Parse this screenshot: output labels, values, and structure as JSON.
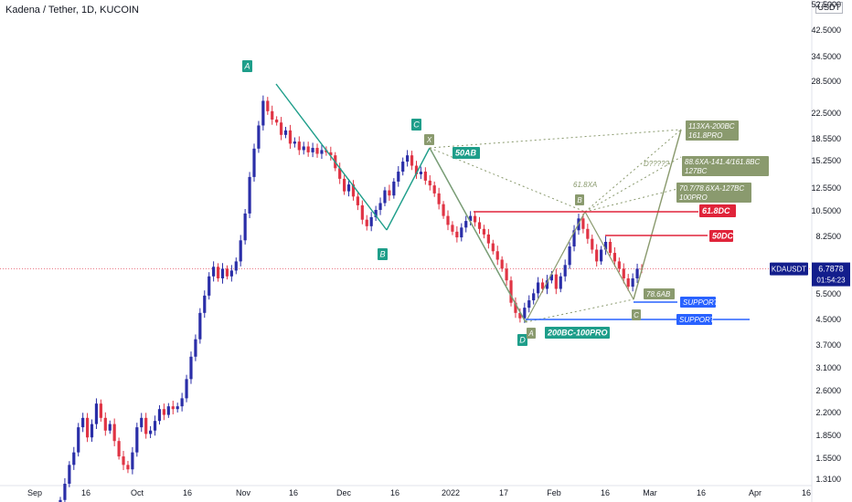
{
  "header": {
    "title": "Kadena / Tether, 1D, KUCOIN",
    "currency": "USDT"
  },
  "colors": {
    "up": "#2a2ea8",
    "down": "#e03444",
    "pattern": "#1e9e8a",
    "olive": "#8a9a6e",
    "red": "#e0243a",
    "blue": "#2962ff",
    "price_tag": "#131e8c"
  },
  "price_tag": {
    "symbol": "KDAUSDT",
    "price": "6.7878",
    "timer": "01:54:23"
  },
  "chart_data": {
    "type": "candlestick",
    "y_scale": "log",
    "ylim": [
      1.25,
      52.5
    ],
    "y_ticks": [
      "52.5000",
      "42.5000",
      "34.5000",
      "28.5000",
      "22.5000",
      "18.5500",
      "15.2500",
      "12.5500",
      "10.5000",
      "8.2500",
      "6.8000",
      "5.5000",
      "4.5000",
      "3.7000",
      "3.1000",
      "2.6000",
      "2.2000",
      "1.8500",
      "1.5500",
      "1.3100"
    ],
    "x_labels": [
      "Sep",
      "16",
      "Oct",
      "16",
      "Nov",
      "16",
      "Dec",
      "16",
      "2022",
      "17",
      "Feb",
      "16",
      "Mar",
      "16",
      "Apr",
      "16"
    ],
    "closes": [
      1.1,
      1.25,
      1.45,
      1.6,
      1.95,
      2.1,
      1.8,
      2.0,
      2.35,
      2.1,
      1.9,
      2.0,
      1.75,
      1.55,
      1.45,
      1.4,
      1.6,
      1.95,
      2.1,
      1.85,
      1.9,
      2.05,
      2.25,
      2.15,
      2.3,
      2.25,
      2.3,
      2.45,
      2.85,
      3.4,
      3.9,
      4.8,
      5.5,
      6.4,
      6.9,
      6.3,
      6.8,
      6.4,
      6.7,
      7.2,
      8.5,
      10.5,
      14.0,
      17.5,
      21.0,
      25.5,
      23.5,
      22.0,
      21.5,
      19.5,
      20.2,
      18.2,
      18.5,
      17.3,
      17.8,
      17.0,
      17.6,
      16.8,
      17.3,
      17.0,
      16.6,
      15.0,
      13.8,
      12.5,
      13.2,
      12.0,
      11.2,
      10.0,
      9.5,
      10.2,
      10.8,
      11.4,
      12.6,
      12.1,
      13.5,
      14.6,
      15.8,
      16.6,
      15.3,
      14.3,
      14.6,
      13.6,
      13.1,
      12.3,
      11.3,
      10.3,
      9.6,
      9.1,
      8.7,
      9.4,
      9.9,
      10.3,
      9.8,
      9.3,
      8.9,
      8.3,
      7.8,
      7.3,
      6.8,
      6.2,
      5.2,
      4.8,
      4.6,
      5.0,
      5.3,
      5.6,
      6.1,
      5.8,
      6.2,
      6.5,
      5.8,
      6.4,
      7.0,
      8.1,
      9.2,
      10.1,
      9.3,
      8.6,
      7.9,
      7.2,
      7.9,
      8.4,
      7.7,
      7.2,
      6.8,
      6.3,
      5.9,
      6.3,
      6.8,
      6.7878
    ],
    "annotations": [
      {
        "text": "A",
        "style": "teal-letter"
      },
      {
        "text": "B",
        "style": "teal-letter"
      },
      {
        "text": "C",
        "style": "teal-letter"
      },
      {
        "text": "D",
        "style": "teal-letter"
      },
      {
        "text": "X",
        "style": "olive-letter"
      },
      {
        "text": "A",
        "style": "olive-letter"
      },
      {
        "text": "B",
        "style": "olive-letter"
      },
      {
        "text": "C",
        "style": "olive-letter"
      },
      {
        "text": "50AB",
        "style": "teal-box"
      },
      {
        "text": "61.8XA",
        "style": "olive-text"
      },
      {
        "text": "D?????",
        "style": "olive-text"
      },
      {
        "text": "78.6AB",
        "style": "olive-box"
      },
      {
        "text": "113XA-200BC\n161.8PRO",
        "style": "olive-box"
      },
      {
        "text": "88.6XA-141.4/161.8BC\n127BC",
        "style": "olive-box"
      },
      {
        "text": "70.7/78.6XA-127BC\n100PRO",
        "style": "olive-box"
      },
      {
        "text": "61.8DC",
        "style": "red-box"
      },
      {
        "text": "50DC",
        "style": "red-box"
      },
      {
        "text": "SUPPORT",
        "style": "blue-box"
      },
      {
        "text": "SUPPORT",
        "style": "blue-box"
      },
      {
        "text": "200BC-100PRO",
        "style": "teal-box"
      }
    ]
  }
}
